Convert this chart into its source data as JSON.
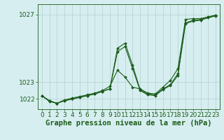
{
  "bg_color": "#d7eef0",
  "grid_color": "#b8d4d6",
  "line_color": "#1a5c1a",
  "marker_color": "#1a5c1a",
  "xlabel": "Graphe pression niveau de la mer (hPa)",
  "xlabel_fontsize": 7.5,
  "tick_fontsize": 6.5,
  "yticks": [
    1022,
    1023,
    1027
  ],
  "ylim": [
    1021.4,
    1027.6
  ],
  "xlim": [
    -0.5,
    23.5
  ],
  "xticks": [
    0,
    1,
    2,
    3,
    4,
    5,
    6,
    7,
    8,
    9,
    10,
    11,
    12,
    13,
    14,
    15,
    16,
    17,
    18,
    19,
    20,
    21,
    22,
    23
  ],
  "series": [
    [
      1022.2,
      1021.85,
      1021.75,
      1021.95,
      1022.05,
      1022.15,
      1022.25,
      1022.35,
      1022.5,
      1022.75,
      1023.7,
      1023.3,
      1022.7,
      1022.6,
      1022.35,
      1022.3,
      1022.7,
      1023.1,
      1023.8,
      1026.7,
      1026.75,
      1026.75,
      1026.85,
      1026.95
    ],
    [
      1022.2,
      1021.9,
      1021.75,
      1021.9,
      1022.0,
      1022.1,
      1022.2,
      1022.3,
      1022.45,
      1022.6,
      1025.0,
      1025.3,
      1024.0,
      1022.55,
      1022.3,
      1022.25,
      1022.6,
      1022.85,
      1023.5,
      1026.5,
      1026.65,
      1026.7,
      1026.85,
      1026.95
    ],
    [
      1022.2,
      1021.9,
      1021.75,
      1021.9,
      1022.0,
      1022.1,
      1022.2,
      1022.3,
      1022.45,
      1022.6,
      1024.8,
      1025.1,
      1023.8,
      1022.5,
      1022.25,
      1022.2,
      1022.55,
      1022.8,
      1023.4,
      1026.45,
      1026.6,
      1026.65,
      1026.8,
      1026.9
    ]
  ]
}
